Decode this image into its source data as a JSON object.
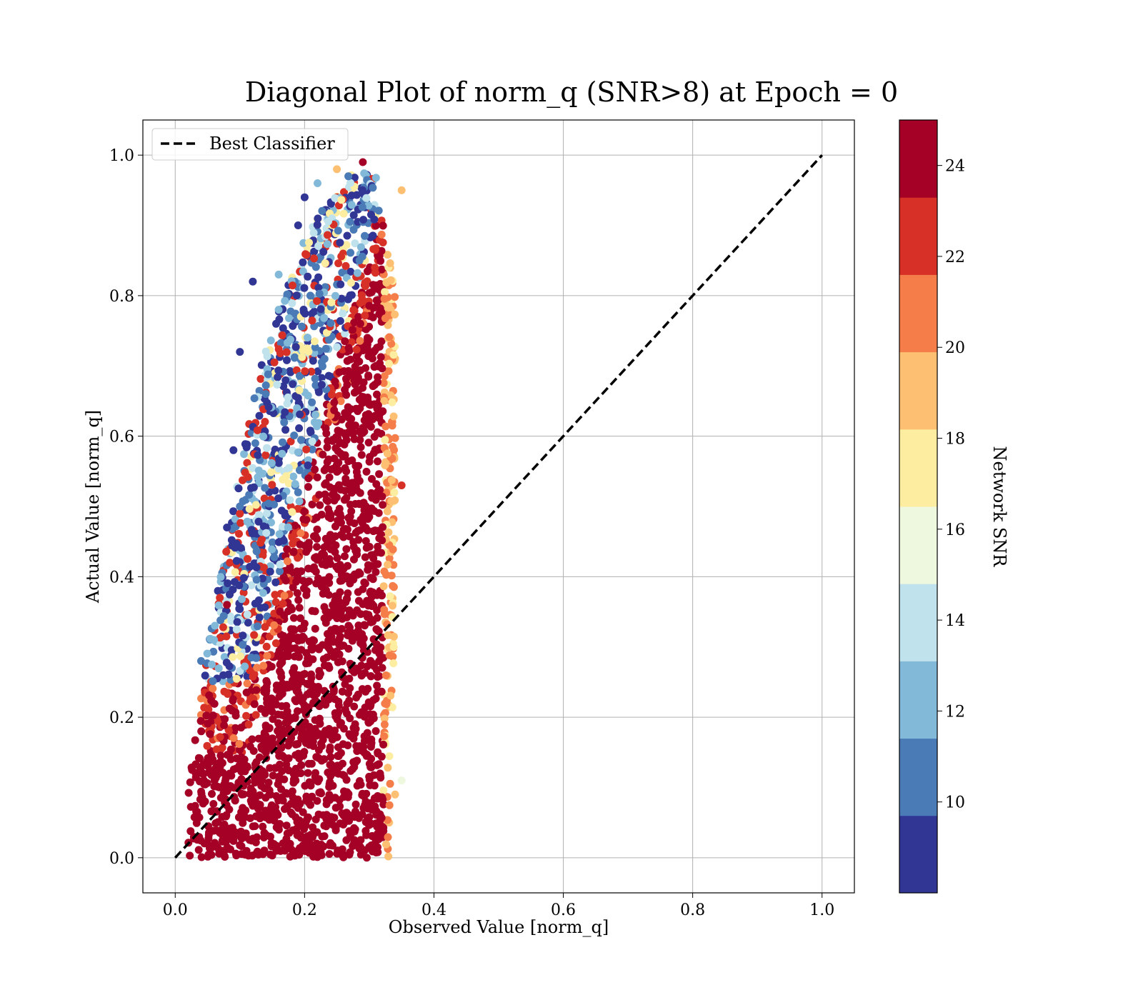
{
  "chart_data": {
    "type": "scatter",
    "title": "Diagonal Plot of norm_q (SNR>8) at Epoch = 0",
    "xlabel": "Observed Value [norm_q]",
    "ylabel": "Actual Value [norm_q]",
    "xlim": [
      -0.05,
      1.05
    ],
    "ylim": [
      -0.05,
      1.05
    ],
    "xticks": [
      "0.0",
      "0.2",
      "0.4",
      "0.6",
      "0.8",
      "1.0"
    ],
    "yticks": [
      "0.0",
      "0.2",
      "0.4",
      "0.6",
      "0.8",
      "1.0"
    ],
    "grid": true,
    "legend": {
      "placement": "top-left",
      "entries": [
        "Best Classifier"
      ]
    },
    "reference_line": {
      "name": "Best Classifier",
      "style": "dashed",
      "color": "#000000",
      "x": [
        0.0,
        1.0
      ],
      "y": [
        0.0,
        1.0
      ]
    },
    "colorbar": {
      "label": "Network SNR",
      "range": [
        8,
        25
      ],
      "ticks": [
        "10",
        "12",
        "14",
        "16",
        "18",
        "20",
        "22",
        "24"
      ],
      "bins": [
        {
          "from": 8,
          "to": 9.7,
          "color": "#313695"
        },
        {
          "from": 9.7,
          "to": 11.4,
          "color": "#4a7bb7"
        },
        {
          "from": 11.4,
          "to": 13.1,
          "color": "#83b9d8"
        },
        {
          "from": 13.1,
          "to": 14.8,
          "color": "#c0e2ec"
        },
        {
          "from": 14.8,
          "to": 16.5,
          "color": "#eef8df"
        },
        {
          "from": 16.5,
          "to": 18.2,
          "color": "#fdeda1"
        },
        {
          "from": 18.2,
          "to": 19.9,
          "color": "#fdbf71"
        },
        {
          "from": 19.9,
          "to": 21.6,
          "color": "#f57d4a"
        },
        {
          "from": 21.6,
          "to": 23.3,
          "color": "#d73027"
        },
        {
          "from": 23.3,
          "to": 25,
          "color": "#a50026"
        }
      ]
    },
    "scatter_envelope": {
      "description_points": [
        {
          "x": 0.02,
          "y": 0.0
        },
        {
          "x": 0.33,
          "y": 0.0
        },
        {
          "x": 0.34,
          "y": 0.3
        },
        {
          "x": 0.34,
          "y": 0.8
        },
        {
          "x": 0.31,
          "y": 0.98
        },
        {
          "x": 0.26,
          "y": 0.97
        },
        {
          "x": 0.2,
          "y": 0.88
        },
        {
          "x": 0.13,
          "y": 0.7
        },
        {
          "x": 0.09,
          "y": 0.5
        },
        {
          "x": 0.05,
          "y": 0.3
        },
        {
          "x": 0.02,
          "y": 0.1
        }
      ],
      "dense_core_color": "#a50026"
    },
    "sample_points": [
      {
        "x": 0.1,
        "y": 0.72,
        "snr": 9
      },
      {
        "x": 0.12,
        "y": 0.82,
        "snr": 9
      },
      {
        "x": 0.19,
        "y": 0.9,
        "snr": 9
      },
      {
        "x": 0.2,
        "y": 0.94,
        "snr": 9
      },
      {
        "x": 0.14,
        "y": 0.66,
        "snr": 10
      },
      {
        "x": 0.09,
        "y": 0.58,
        "snr": 9
      },
      {
        "x": 0.1,
        "y": 0.5,
        "snr": 10
      },
      {
        "x": 0.08,
        "y": 0.47,
        "snr": 9
      },
      {
        "x": 0.06,
        "y": 0.31,
        "snr": 13
      },
      {
        "x": 0.04,
        "y": 0.28,
        "snr": 10
      },
      {
        "x": 0.16,
        "y": 0.78,
        "snr": 13
      },
      {
        "x": 0.16,
        "y": 0.83,
        "snr": 12
      },
      {
        "x": 0.22,
        "y": 0.96,
        "snr": 12
      },
      {
        "x": 0.25,
        "y": 0.98,
        "snr": 19
      },
      {
        "x": 0.29,
        "y": 0.99,
        "snr": 24
      },
      {
        "x": 0.35,
        "y": 0.95,
        "snr": 19
      },
      {
        "x": 0.35,
        "y": 0.53,
        "snr": 22
      },
      {
        "x": 0.35,
        "y": 0.11,
        "snr": 16
      },
      {
        "x": 0.34,
        "y": 0.09,
        "snr": 19
      },
      {
        "x": 0.08,
        "y": 0.36,
        "snr": 24
      }
    ]
  }
}
